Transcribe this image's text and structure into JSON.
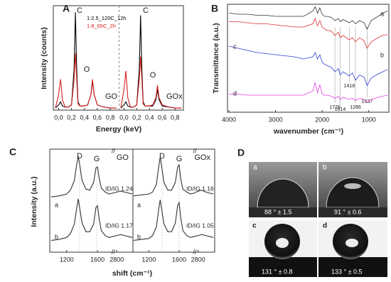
{
  "chart_data": [
    {
      "type": "line",
      "panel": "A",
      "ylabel": "Intensity (counts)",
      "xlabel": "Energy (keV)",
      "title": "GO",
      "xlim": [
        -0.06,
        0.92
      ],
      "ylim": [
        0,
        1
      ],
      "xticks": [
        {
          "value": 0,
          "label": "0,0"
        },
        {
          "value": 0.2,
          "label": "0,2"
        },
        {
          "value": 0.4,
          "label": "0,4"
        },
        {
          "value": 0.6,
          "label": "0,6"
        },
        {
          "value": 0.8,
          "label": "0,8"
        }
      ],
      "x": [
        -0.05,
        0,
        0.03,
        0.06,
        0.1,
        0.15,
        0.2,
        0.24,
        0.26,
        0.28,
        0.3,
        0.33,
        0.38,
        0.45,
        0.5,
        0.525,
        0.55,
        0.6,
        0.7,
        0.8,
        0.9
      ],
      "series": [
        {
          "name": "1:2.5_120C_12h",
          "color": "#000000",
          "values": [
            0.02,
            0.05,
            0.08,
            0.04,
            0.03,
            0.03,
            0.05,
            0.4,
            0.95,
            0.4,
            0.08,
            0.04,
            0.04,
            0.05,
            0.15,
            0.28,
            0.15,
            0.05,
            0.03,
            0.02,
            0.02
          ]
        },
        {
          "name": "1:8_65C_2h",
          "color": "#d62020",
          "values": [
            0.02,
            0.15,
            0.3,
            0.1,
            0.03,
            0.03,
            0.05,
            0.3,
            0.55,
            0.3,
            0.06,
            0.04,
            0.04,
            0.05,
            0.15,
            0.3,
            0.15,
            0.05,
            0.03,
            0.02,
            0.02
          ]
        }
      ],
      "annotations": [
        "C",
        "O"
      ]
    },
    {
      "type": "line",
      "title": "GOx",
      "xlim": [
        -0.06,
        0.92
      ],
      "ylim": [
        0,
        1
      ],
      "xticks": [
        {
          "value": 0,
          "label": "0,0"
        },
        {
          "value": 0.2,
          "label": "0,2"
        },
        {
          "value": 0.4,
          "label": "0,4"
        },
        {
          "value": 0.6,
          "label": "0,6"
        },
        {
          "value": 0.8,
          "label": "0,8"
        }
      ],
      "x": [
        -0.05,
        0,
        0.03,
        0.06,
        0.1,
        0.15,
        0.2,
        0.24,
        0.26,
        0.28,
        0.3,
        0.33,
        0.38,
        0.45,
        0.5,
        0.525,
        0.55,
        0.6,
        0.7,
        0.8,
        0.9
      ],
      "series": [
        {
          "color": "#000000",
          "values": [
            0.02,
            0.05,
            0.08,
            0.04,
            0.03,
            0.03,
            0.05,
            0.4,
            0.92,
            0.4,
            0.08,
            0.04,
            0.04,
            0.04,
            0.1,
            0.2,
            0.1,
            0.04,
            0.03,
            0.02,
            0.02
          ]
        },
        {
          "color": "#d62020",
          "values": [
            0.02,
            0.2,
            0.38,
            0.12,
            0.03,
            0.03,
            0.05,
            0.3,
            0.52,
            0.3,
            0.06,
            0.04,
            0.04,
            0.05,
            0.12,
            0.24,
            0.12,
            0.05,
            0.03,
            0.02,
            0.02
          ]
        }
      ],
      "annotations": [
        "C",
        "O"
      ]
    },
    {
      "type": "line",
      "panel": "B",
      "ylabel": "Transmittance (a.u.)",
      "xlabel": "wavenumber (cm⁻¹)",
      "xlim": [
        4000,
        600
      ],
      "ylim": [
        0,
        1
      ],
      "xticks": [
        4000,
        3000,
        2000,
        1000
      ],
      "x": [
        4000,
        3800,
        3600,
        3400,
        3200,
        3000,
        2800,
        2600,
        2400,
        2200,
        2150,
        2100,
        2050,
        2000,
        1950,
        1900,
        1800,
        1726,
        1650,
        1614,
        1550,
        1418,
        1350,
        1286,
        1200,
        1100,
        1037,
        950,
        800,
        700,
        600
      ],
      "series": [
        {
          "name": "a",
          "color": "#333333",
          "values": [
            0.93,
            0.92,
            0.92,
            0.91,
            0.91,
            0.9,
            0.9,
            0.9,
            0.9,
            0.95,
            0.99,
            0.93,
            0.98,
            0.92,
            0.9,
            0.9,
            0.89,
            0.86,
            0.88,
            0.85,
            0.87,
            0.84,
            0.86,
            0.83,
            0.86,
            0.84,
            0.78,
            0.86,
            0.9,
            0.93,
            0.95
          ]
        },
        {
          "name": "b",
          "color": "#e03030",
          "values": [
            0.85,
            0.85,
            0.84,
            0.83,
            0.83,
            0.82,
            0.81,
            0.8,
            0.8,
            0.83,
            0.88,
            0.81,
            0.86,
            0.8,
            0.78,
            0.77,
            0.76,
            0.72,
            0.75,
            0.7,
            0.72,
            0.68,
            0.7,
            0.66,
            0.7,
            0.67,
            0.6,
            0.66,
            0.7,
            0.72,
            0.73
          ]
        },
        {
          "name": "c",
          "color": "#3040d0",
          "values": [
            0.62,
            0.6,
            0.58,
            0.56,
            0.55,
            0.54,
            0.53,
            0.52,
            0.5,
            0.52,
            0.56,
            0.5,
            0.54,
            0.47,
            0.45,
            0.44,
            0.42,
            0.38,
            0.41,
            0.35,
            0.38,
            0.34,
            0.37,
            0.3,
            0.35,
            0.33,
            0.25,
            0.32,
            0.36,
            0.38,
            0.4
          ]
        },
        {
          "name": "d",
          "color": "#e040e0",
          "values": [
            0.17,
            0.17,
            0.16,
            0.16,
            0.16,
            0.16,
            0.16,
            0.16,
            0.16,
            0.2,
            0.28,
            0.18,
            0.26,
            0.17,
            0.16,
            0.16,
            0.15,
            0.13,
            0.15,
            0.12,
            0.14,
            0.12,
            0.13,
            0.11,
            0.13,
            0.12,
            0.09,
            0.12,
            0.14,
            0.15,
            0.16
          ]
        }
      ],
      "bands": [
        1726,
        1614,
        1418,
        1286,
        1037
      ]
    },
    {
      "type": "line",
      "panel": "C",
      "ylabel": "Intensity (a.u.)",
      "xlabel": "shift (cm⁻¹)",
      "title": "GO",
      "break_mark": "//",
      "xlim": [
        1000,
        3000
      ],
      "xbreak": [
        1750,
        2700
      ],
      "ylim": [
        0,
        1
      ],
      "xticks": [
        1200,
        1600,
        2800
      ],
      "x": [
        1000,
        1100,
        1200,
        1250,
        1300,
        1330,
        1350,
        1370,
        1400,
        1450,
        1500,
        1550,
        1580,
        1600,
        1620,
        1650,
        1700,
        1750,
        2700,
        2750,
        2800,
        2850,
        2900,
        2950,
        3000
      ],
      "series": [
        {
          "name": "a",
          "color": "#333333",
          "values": [
            0.55,
            0.56,
            0.58,
            0.62,
            0.72,
            0.88,
            0.97,
            0.88,
            0.72,
            0.63,
            0.62,
            0.7,
            0.85,
            0.86,
            0.75,
            0.64,
            0.6,
            0.58,
            0.58,
            0.59,
            0.6,
            0.61,
            0.6,
            0.59,
            0.58
          ]
        },
        {
          "name": "b",
          "color": "#333333",
          "values": [
            0.1,
            0.11,
            0.13,
            0.17,
            0.27,
            0.43,
            0.53,
            0.43,
            0.28,
            0.19,
            0.19,
            0.27,
            0.44,
            0.46,
            0.33,
            0.2,
            0.15,
            0.13,
            0.13,
            0.14,
            0.15,
            0.16,
            0.15,
            0.14,
            0.13
          ]
        }
      ],
      "annotations": [
        "D",
        "G",
        "ID/IG 1.24",
        "ID/IG 1.17"
      ]
    },
    {
      "type": "line",
      "title": "GOx",
      "break_mark": "//",
      "xlim": [
        1000,
        3000
      ],
      "xbreak": [
        1750,
        2700
      ],
      "ylim": [
        0,
        1
      ],
      "xticks": [
        1200,
        1600,
        2800
      ],
      "x": [
        1000,
        1100,
        1200,
        1250,
        1300,
        1330,
        1350,
        1370,
        1400,
        1450,
        1500,
        1550,
        1580,
        1600,
        1620,
        1650,
        1700,
        1750,
        2700,
        2750,
        2800,
        2850,
        2900,
        2950,
        3000
      ],
      "series": [
        {
          "name": "a",
          "color": "#333333",
          "values": [
            0.56,
            0.57,
            0.58,
            0.6,
            0.68,
            0.86,
            0.96,
            0.86,
            0.7,
            0.62,
            0.62,
            0.7,
            0.86,
            0.88,
            0.74,
            0.63,
            0.6,
            0.58,
            0.58,
            0.59,
            0.61,
            0.62,
            0.6,
            0.59,
            0.58
          ]
        },
        {
          "name": "b",
          "color": "#333333",
          "values": [
            0.1,
            0.11,
            0.12,
            0.15,
            0.24,
            0.42,
            0.52,
            0.42,
            0.27,
            0.19,
            0.19,
            0.28,
            0.46,
            0.49,
            0.34,
            0.2,
            0.15,
            0.13,
            0.13,
            0.14,
            0.15,
            0.16,
            0.15,
            0.14,
            0.13
          ]
        }
      ],
      "annotations": [
        "D",
        "G",
        "ID/IG 1.16",
        "ID/IG 1.05"
      ]
    }
  ],
  "images": {
    "panel": "D",
    "items": [
      {
        "label": "a",
        "angle": "88 ° ± 1.5"
      },
      {
        "label": "b",
        "angle": "91 ° ± 0.6"
      },
      {
        "label": "c",
        "angle": "131 ° ± 0.8"
      },
      {
        "label": "d",
        "angle": "133 ° ± 0.5"
      }
    ]
  }
}
